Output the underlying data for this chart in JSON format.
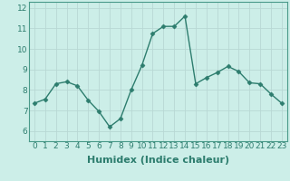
{
  "x": [
    0,
    1,
    2,
    3,
    4,
    5,
    6,
    7,
    8,
    9,
    10,
    11,
    12,
    13,
    14,
    15,
    16,
    17,
    18,
    19,
    20,
    21,
    22,
    23
  ],
  "y": [
    7.35,
    7.55,
    8.3,
    8.4,
    8.2,
    7.5,
    6.95,
    6.2,
    6.6,
    8.0,
    9.2,
    10.75,
    11.1,
    11.1,
    11.6,
    8.3,
    8.6,
    8.85,
    9.15,
    8.9,
    8.35,
    8.3,
    7.8,
    7.35
  ],
  "xlabel": "Humidex (Indice chaleur)",
  "ylim": [
    5.5,
    12.3
  ],
  "xlim": [
    -0.5,
    23.5
  ],
  "yticks": [
    6,
    7,
    8,
    9,
    10,
    11,
    12
  ],
  "xticks": [
    0,
    1,
    2,
    3,
    4,
    5,
    6,
    7,
    8,
    9,
    10,
    11,
    12,
    13,
    14,
    15,
    16,
    17,
    18,
    19,
    20,
    21,
    22,
    23
  ],
  "line_color": "#2d7d6e",
  "marker": "D",
  "marker_size": 2.5,
  "background_color": "#cceee8",
  "grid_color": "#b8d8d4",
  "tick_label_fontsize": 6.5,
  "xlabel_fontsize": 8,
  "spine_color": "#4a9a8a"
}
